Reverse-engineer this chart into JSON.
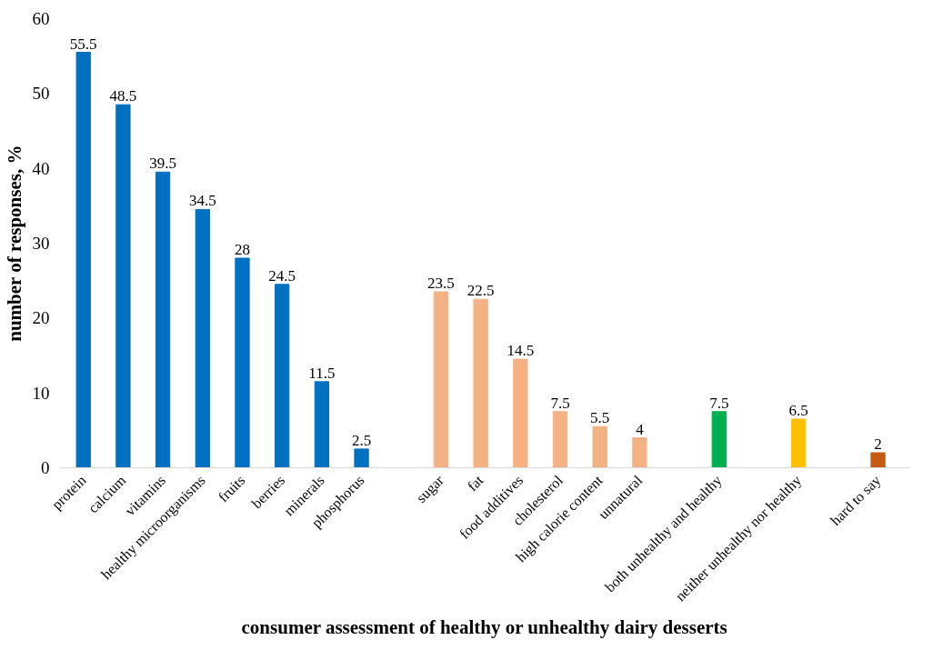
{
  "chart_data": {
    "type": "bar",
    "xlabel": "consumer assessment of healthy or unhealthy dairy desserts",
    "ylabel": "number of responses, %",
    "categories": [
      "protein",
      "calcium",
      "vitamins",
      "healthy microorganisms",
      "fruits",
      "berries",
      "minerals",
      "phosphorus",
      null,
      "sugar",
      "fat",
      "food additives",
      "cholesterol",
      "high calorie content",
      "unnatural",
      null,
      "both unhealthy and healthy",
      null,
      "neither unhealthy nor healthy",
      null,
      "hard to say"
    ],
    "values": [
      55.5,
      48.5,
      39.5,
      34.5,
      28,
      24.5,
      11.5,
      2.5,
      null,
      23.5,
      22.5,
      14.5,
      7.5,
      5.5,
      4,
      null,
      7.5,
      null,
      6.5,
      null,
      2
    ],
    "colors": [
      "#0070c0",
      "#0070c0",
      "#0070c0",
      "#0070c0",
      "#0070c0",
      "#0070c0",
      "#0070c0",
      "#0070c0",
      "#ffffff",
      "#f4b183",
      "#f4b183",
      "#f4b183",
      "#f4b183",
      "#f4b183",
      "#f4b183",
      "#ffffff",
      "#00b050",
      "#ffffff",
      "#ffc000",
      "#ffffff",
      "#c55a11"
    ],
    "ylim": [
      0,
      60
    ],
    "yticks": [
      0,
      10,
      20,
      30,
      40,
      50,
      60
    ],
    "data_labels": true,
    "grid": false
  }
}
